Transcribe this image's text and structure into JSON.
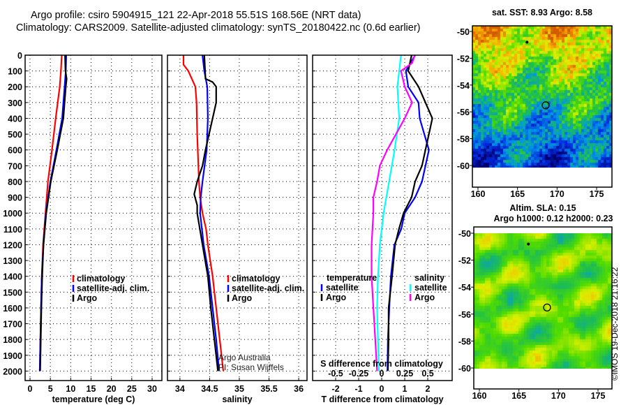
{
  "title": {
    "line1": "Argo profile: csiro 5904915_121 22-Apr-2018 55.51S 168.56E (NRT data)",
    "line2": "Climatology: CARS2009. Satellite-adjusted climatology: synTS_20180422.nc (0.6d earlier)"
  },
  "colors": {
    "climatology": "#ff0000",
    "satellite": "#0000ff",
    "argo": "#000000",
    "sal_satellite": "#00ffff",
    "sal_argo": "#ff00ff"
  },
  "chart_data": [
    {
      "type": "line",
      "name": "temperature",
      "xlabel": "temperature (deg C)",
      "ylabel": "",
      "xlim": [
        -1.2,
        32.4
      ],
      "ylim": [
        2060,
        0
      ],
      "xticks": [
        0,
        5,
        10,
        15,
        20,
        25,
        30
      ],
      "yticks": [
        0,
        100,
        200,
        300,
        400,
        500,
        600,
        700,
        800,
        900,
        1000,
        1100,
        1200,
        1300,
        1400,
        1500,
        1600,
        1700,
        1800,
        1900,
        2000
      ],
      "grid": true,
      "legend": {
        "placement": "bottom-center",
        "entries": [
          "climatology",
          "satellite-adj. clim.",
          "Argo"
        ]
      },
      "series": [
        {
          "name": "climatology",
          "color": "#ff0000",
          "depth": [
            0,
            100,
            200,
            400,
            600,
            800,
            1000,
            1200,
            1400,
            1600,
            2000
          ],
          "values": [
            7.8,
            7.6,
            7.3,
            6.3,
            5.4,
            4.4,
            3.8,
            3.2,
            2.9,
            2.7,
            2.4
          ]
        },
        {
          "name": "satellite-adj. clim.",
          "color": "#0000ff",
          "depth": [
            0,
            100,
            200,
            400,
            600,
            800,
            1000,
            1200,
            1400,
            1600,
            2000
          ],
          "values": [
            8.9,
            8.8,
            8.5,
            7.9,
            6.5,
            5.0,
            3.9,
            3.3,
            2.9,
            2.7,
            2.4
          ]
        },
        {
          "name": "Argo",
          "color": "#000000",
          "depth": [
            0,
            100,
            150,
            200,
            400,
            600,
            800,
            1000,
            1200,
            1400,
            1600,
            2000
          ],
          "values": [
            8.6,
            8.7,
            9.0,
            8.8,
            8.2,
            6.7,
            5.1,
            4.0,
            3.3,
            3.0,
            2.8,
            2.5
          ]
        }
      ]
    },
    {
      "type": "line",
      "name": "salinity",
      "xlabel": "salinity",
      "xlim": [
        33.79,
        36.14
      ],
      "ylim": [
        2060,
        0
      ],
      "xticks": [
        34,
        34.5,
        35,
        35.5,
        36
      ],
      "grid": true,
      "legend": {
        "placement": "bottom-right",
        "entries": [
          "climatology",
          "satellite-adj. clim.",
          "Argo"
        ]
      },
      "annotations": [
        "Argo Australia",
        "PI: Susan Wijffels"
      ],
      "series": [
        {
          "name": "climatology",
          "color": "#ff0000",
          "depth": [
            0,
            60,
            100,
            200,
            300,
            500,
            800,
            900,
            1000,
            1100,
            1200,
            1400,
            1600,
            1800,
            2000
          ],
          "values": [
            34.06,
            34.06,
            34.14,
            34.26,
            34.28,
            34.29,
            34.32,
            34.34,
            34.38,
            34.44,
            34.47,
            34.55,
            34.61,
            34.67,
            34.73
          ]
        },
        {
          "name": "satellite-adj. clim.",
          "color": "#0000ff",
          "depth": [
            0,
            100,
            200,
            400,
            600,
            800,
            900,
            1000,
            1200,
            1400,
            1600,
            1800,
            2000
          ],
          "values": [
            34.38,
            34.41,
            34.46,
            34.47,
            34.45,
            34.38,
            34.35,
            34.34,
            34.4,
            34.49,
            34.55,
            34.61,
            34.66
          ]
        },
        {
          "name": "Argo",
          "color": "#000000",
          "depth": [
            0,
            150,
            170,
            200,
            300,
            400,
            500,
            600,
            700,
            800,
            880,
            950,
            1000,
            1200,
            1400,
            1600,
            1800,
            2000
          ],
          "values": [
            34.41,
            34.43,
            34.55,
            34.61,
            34.61,
            34.55,
            34.49,
            34.43,
            34.38,
            34.29,
            34.24,
            34.29,
            34.29,
            34.38,
            34.47,
            34.52,
            34.58,
            34.64
          ]
        }
      ]
    },
    {
      "type": "line",
      "name": "difference",
      "xlabel": "T difference from climatology",
      "xlabel2": "S difference from climatology",
      "xlim": [
        -3.0,
        3.06
      ],
      "ylim": [
        2060,
        0
      ],
      "xticks": [
        -2,
        -1,
        0,
        1,
        2
      ],
      "xticks2": [
        -0.5,
        -0.25,
        0,
        0.25,
        0.5
      ],
      "xticks2_labels": [
        "-0.5",
        "-0.25",
        "0",
        "0.25",
        "0.5"
      ],
      "grid": true,
      "legend_temperature": {
        "title": "temperature",
        "entries": [
          "satellite",
          "Argo"
        ]
      },
      "legend_salinity": {
        "title": "salinity",
        "entries": [
          "satellite",
          "Argo"
        ]
      },
      "series": [
        {
          "name": "temperature satellite",
          "color": "#0000ff",
          "axis": "T",
          "depth": [
            0,
            100,
            200,
            300,
            400,
            600,
            800,
            900,
            1000,
            1100,
            1200,
            1400,
            1600,
            1800,
            2000
          ],
          "values": [
            1.45,
            1.05,
            1.15,
            1.6,
            1.65,
            2.05,
            1.75,
            1.45,
            1.0,
            0.85,
            0.55,
            0.4,
            0.33,
            0.27,
            0.25
          ]
        },
        {
          "name": "temperature Argo",
          "color": "#000000",
          "axis": "T",
          "depth": [
            0,
            100,
            200,
            250,
            400,
            500,
            600,
            700,
            800,
            900,
            1000,
            1100,
            1200,
            1400,
            1600,
            1800,
            2000
          ],
          "values": [
            1.3,
            1.15,
            1.6,
            1.75,
            2.2,
            2.05,
            1.9,
            1.75,
            1.45,
            1.3,
            0.95,
            0.75,
            0.58,
            0.45,
            0.3,
            0.3,
            0.27
          ]
        },
        {
          "name": "salinity satellite",
          "color": "#00ffff",
          "axis": "S",
          "depth": [
            0,
            100,
            200,
            400,
            600,
            800,
            1000,
            1200,
            1400,
            1600,
            1800,
            2000
          ],
          "values": [
            0.21,
            0.19,
            0.17,
            0.19,
            0.14,
            0.08,
            0.02,
            -0.02,
            -0.04,
            -0.05,
            -0.04,
            -0.03
          ]
        },
        {
          "name": "salinity Argo",
          "color": "#ff00ff",
          "axis": "S",
          "depth": [
            0,
            50,
            100,
            200,
            300,
            400,
            600,
            700,
            800,
            900,
            1000,
            1200,
            1400,
            1600,
            1800,
            2000
          ],
          "values": [
            0.36,
            0.33,
            0.21,
            0.25,
            0.33,
            0.25,
            0.06,
            -0.02,
            -0.05,
            -0.09,
            -0.09,
            -0.11,
            -0.11,
            -0.09,
            -0.07,
            -0.05
          ]
        }
      ]
    }
  ],
  "maps": [
    {
      "title": "sat. SST: 8.93 Argo: 8.58",
      "kind": "sst",
      "lat_ticks": [
        "-50",
        "-52",
        "-54",
        "-56",
        "-58",
        "-60"
      ],
      "lon_ticks": [
        "160",
        "165",
        "170",
        "175"
      ],
      "argo_lat": -55.51,
      "argo_lon": 168.56
    },
    {
      "title": "Altim. SLA: 0.15",
      "subtitle": "Argo h1000: 0.12 h2000: 0.23",
      "kind": "sla",
      "lat_ticks": [
        "-50",
        "-52",
        "-54",
        "-56",
        "-58",
        "-60"
      ],
      "lon_ticks": [
        "160",
        "165",
        "170",
        "175"
      ],
      "argo_lat": -55.51,
      "argo_lon": 168.56
    }
  ],
  "copyright": "©IMOS 19-Dec-2018 21:16:22"
}
